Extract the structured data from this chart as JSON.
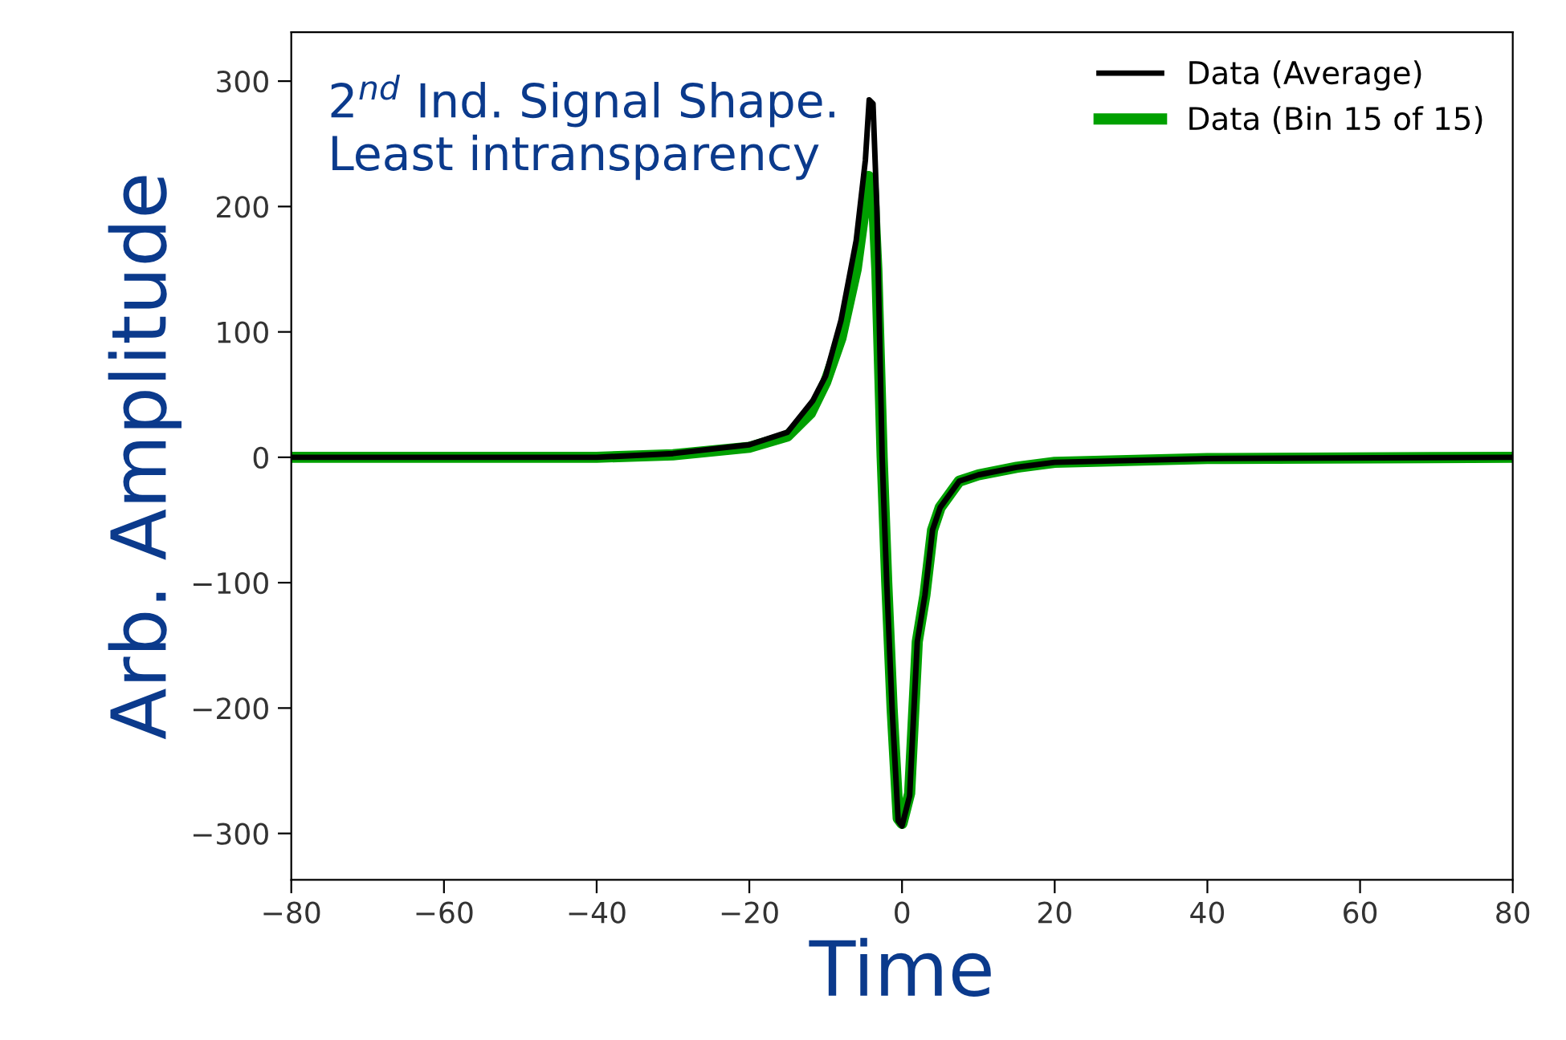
{
  "chart_data": {
    "type": "line",
    "xlabel": "Time",
    "ylabel": "Arb. Amplitude",
    "annotations": [
      "2$^{nd}$ Ind. Signal Shape. Least intransparency"
    ],
    "xlim": [
      -80,
      80
    ],
    "xticks": [
      {
        "value": -80,
        "label": "−80"
      },
      {
        "value": -60,
        "label": "−60"
      },
      {
        "value": -40,
        "label": "−40"
      },
      {
        "value": -20,
        "label": "−20"
      },
      0,
      20,
      40,
      60,
      80
    ],
    "ylim": [
      -337,
      339
    ],
    "yticks": [
      {
        "value": -300,
        "label": "−300"
      },
      {
        "value": -200,
        "label": "−200"
      },
      {
        "value": -100,
        "label": "−100"
      },
      0,
      100,
      200,
      300
    ],
    "grid": false,
    "legend": "top right",
    "marker": "none",
    "line_style": "solid",
    "series": [
      {
        "name": "Data (Bin 15 of 15)",
        "color": "#00a000",
        "x": [
          -80,
          -40,
          -30,
          -20,
          -15,
          -12,
          -10,
          -8,
          -6,
          -5,
          -4.4,
          -3.8,
          -3.3,
          -2.6,
          -2,
          -1.3,
          -0.5,
          0,
          1,
          2,
          3,
          4,
          5,
          7.5,
          10,
          15,
          20,
          40,
          80
        ],
        "values": [
          0,
          0,
          2,
          8,
          17,
          35,
          60,
          95,
          150,
          195,
          224,
          215,
          150,
          0,
          -100,
          -200,
          -288,
          -292,
          -268,
          -147,
          -110,
          -58,
          -40,
          -19,
          -14,
          -8,
          -4,
          -1,
          0
        ]
      },
      {
        "name": "Data (Average)",
        "color": "#000000",
        "x": [
          -80,
          -40,
          -30,
          -20,
          -15,
          -11.7,
          -10,
          -8,
          -6,
          -4.8,
          -4.3,
          -3.8,
          -3.3,
          -2.6,
          -2,
          -1.3,
          -0.5,
          0,
          1,
          2,
          3,
          4,
          5,
          7.5,
          10,
          15,
          20,
          40,
          80
        ],
        "values": [
          0,
          0,
          3,
          10,
          20,
          45,
          65,
          109,
          173,
          237,
          285,
          282,
          200,
          0,
          -100,
          -200,
          -290,
          -294,
          -270,
          -147,
          -110,
          -58,
          -40,
          -19,
          -14,
          -8,
          -4,
          -1,
          0
        ]
      }
    ]
  }
}
